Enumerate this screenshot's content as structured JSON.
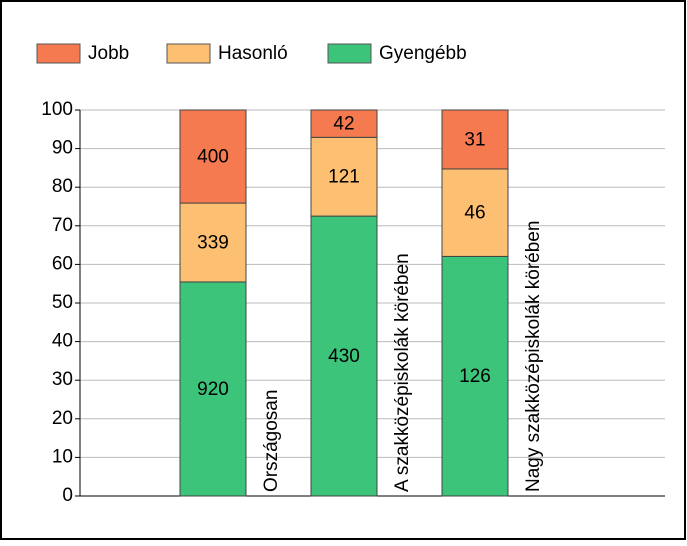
{
  "chart_data": {
    "type": "bar",
    "stacking": "percent",
    "categories": [
      "Országosan",
      "A szakközépiskolák körében",
      "Nagy szakközépiskolák körében"
    ],
    "series": [
      {
        "name": "Gyengébb",
        "color": "#3cc47a",
        "values": [
          920,
          430,
          126
        ]
      },
      {
        "name": "Hasonló",
        "color": "#fdc072",
        "values": [
          339,
          121,
          46
        ]
      },
      {
        "name": "Jobb",
        "color": "#f57a50",
        "values": [
          400,
          42,
          31
        ]
      }
    ],
    "legend_order": [
      "Jobb",
      "Hasonló",
      "Gyengébb"
    ],
    "ylim": [
      0,
      100
    ],
    "yticks": [
      0,
      10,
      20,
      30,
      40,
      50,
      60,
      70,
      80,
      90,
      100
    ],
    "grid": true
  }
}
